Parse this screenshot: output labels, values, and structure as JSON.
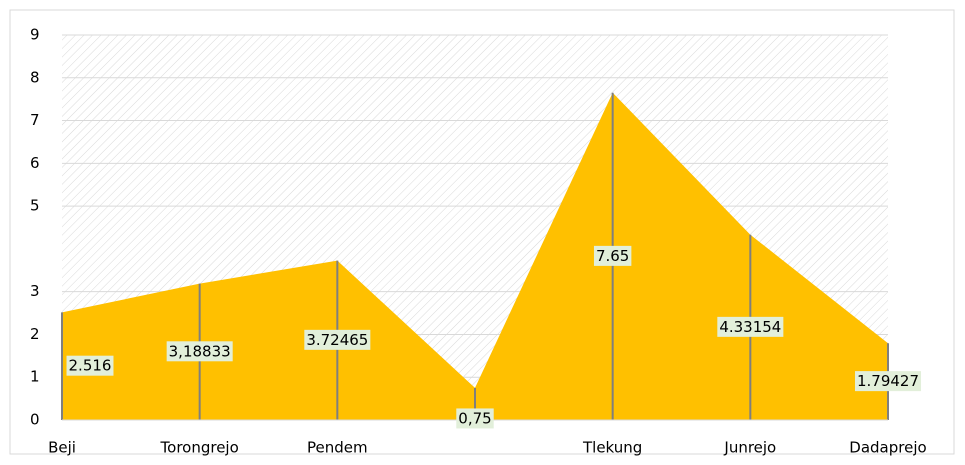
{
  "chart_data": {
    "type": "area",
    "categories": [
      "Beji",
      "Torongrejo",
      "Pendem",
      null,
      "Tlekung",
      "Junrejo",
      "Dadaprejo"
    ],
    "values": [
      2.516,
      3.18833,
      3.72465,
      0.75,
      7.65,
      4.33154,
      1.79427
    ],
    "value_labels": [
      "2.516",
      "3,18833",
      "3.72465",
      "0,75",
      "7.65",
      "4.33154",
      "1.79427"
    ],
    "color": "#ffc000",
    "ylim": [
      0,
      9
    ],
    "yticks": [
      0,
      1,
      2,
      3,
      5,
      6,
      7,
      8,
      9
    ],
    "grid": true,
    "drop_lines": true
  }
}
